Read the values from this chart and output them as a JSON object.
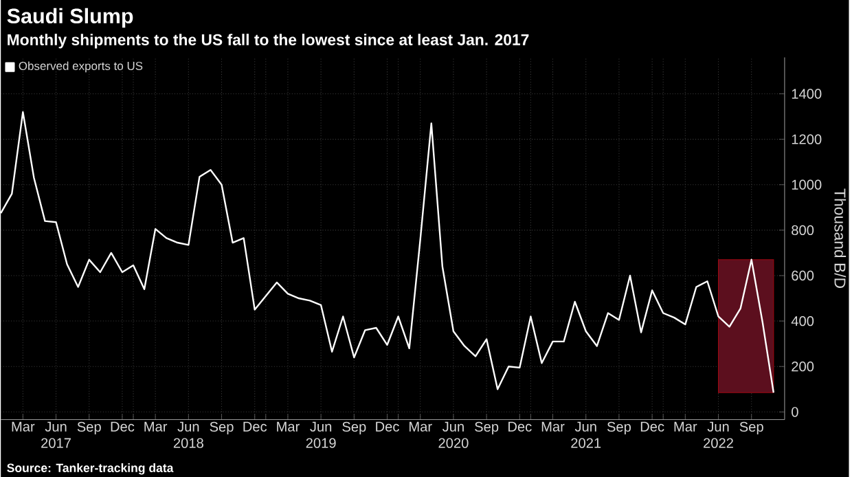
{
  "chart_data": {
    "type": "line",
    "title": "Saudi Slump",
    "subtitle": "Monthly shipments to the US fall to the lowest since at least Jan. 2017",
    "ylabel": "Thousand B/D",
    "x": [
      "2017-01",
      "2017-02",
      "2017-03",
      "2017-04",
      "2017-05",
      "2017-06",
      "2017-07",
      "2017-08",
      "2017-09",
      "2017-10",
      "2017-11",
      "2017-12",
      "2018-01",
      "2018-02",
      "2018-03",
      "2018-04",
      "2018-05",
      "2018-06",
      "2018-07",
      "2018-08",
      "2018-09",
      "2018-10",
      "2018-11",
      "2018-12",
      "2019-01",
      "2019-02",
      "2019-03",
      "2019-04",
      "2019-05",
      "2019-06",
      "2019-07",
      "2019-08",
      "2019-09",
      "2019-10",
      "2019-11",
      "2019-12",
      "2020-01",
      "2020-02",
      "2020-03",
      "2020-04",
      "2020-05",
      "2020-06",
      "2020-07",
      "2020-08",
      "2020-09",
      "2020-10",
      "2020-11",
      "2020-12",
      "2021-01",
      "2021-02",
      "2021-03",
      "2021-04",
      "2021-05",
      "2021-06",
      "2021-07",
      "2021-08",
      "2021-09",
      "2021-10",
      "2021-11",
      "2021-12",
      "2022-01",
      "2022-02",
      "2022-03",
      "2022-04",
      "2022-05",
      "2022-06",
      "2022-07",
      "2022-08",
      "2022-09",
      "2022-10",
      "2022-11"
    ],
    "series": [
      {
        "name": "Observed exports to US",
        "color": "#ffffff",
        "values": [
          875,
          960,
          1320,
          1030,
          840,
          835,
          650,
          550,
          670,
          615,
          700,
          615,
          645,
          540,
          805,
          765,
          745,
          735,
          1035,
          1065,
          1000,
          745,
          765,
          450,
          510,
          570,
          520,
          500,
          490,
          470,
          265,
          420,
          240,
          360,
          370,
          295,
          420,
          280,
          760,
          1270,
          640,
          355,
          290,
          245,
          320,
          100,
          200,
          195,
          420,
          215,
          310,
          310,
          485,
          355,
          290,
          435,
          405,
          600,
          350,
          535,
          435,
          415,
          385,
          550,
          575,
          420,
          375,
          455,
          670,
          395,
          85
        ]
      }
    ],
    "xlim": [
      "2017-01",
      "2022-12"
    ],
    "ylim": [
      -34,
      1560
    ],
    "xticks": [
      {
        "value": "2017-03",
        "label": "Mar"
      },
      {
        "value": "2017-06",
        "label": "Jun 2017"
      },
      {
        "value": "2017-09",
        "label": "Sep"
      },
      {
        "value": "2017-12",
        "label": "Dec"
      },
      {
        "value": "2018-01",
        "label": null
      },
      {
        "value": "2018-03",
        "label": "Mar"
      },
      {
        "value": "2018-06",
        "label": "Jun 2018"
      },
      {
        "value": "2018-09",
        "label": "Sep"
      },
      {
        "value": "2018-12",
        "label": "Dec"
      },
      {
        "value": "2019-01",
        "label": null
      },
      {
        "value": "2019-03",
        "label": "Mar"
      },
      {
        "value": "2019-06",
        "label": "Jun 2019"
      },
      {
        "value": "2019-09",
        "label": "Sep"
      },
      {
        "value": "2019-12",
        "label": "Dec"
      },
      {
        "value": "2020-01",
        "label": null
      },
      {
        "value": "2020-03",
        "label": "Mar"
      },
      {
        "value": "2020-06",
        "label": "Jun 2020"
      },
      {
        "value": "2020-09",
        "label": "Sep"
      },
      {
        "value": "2020-12",
        "label": "Dec"
      },
      {
        "value": "2021-01",
        "label": null
      },
      {
        "value": "2021-03",
        "label": "Mar"
      },
      {
        "value": "2021-06",
        "label": "Jun 2021"
      },
      {
        "value": "2021-09",
        "label": "Sep"
      },
      {
        "value": "2021-12",
        "label": "Dec"
      },
      {
        "value": "2022-01",
        "label": null
      },
      {
        "value": "2022-03",
        "label": "Mar"
      },
      {
        "value": "2022-06",
        "label": "Jun 2022"
      },
      {
        "value": "2022-09",
        "label": "Sep"
      }
    ],
    "yticks": [
      0,
      200,
      400,
      600,
      800,
      1000,
      1200,
      1400
    ],
    "grid": true,
    "legend": "top left",
    "bands": [
      {
        "axis": "x",
        "from": "2022-06",
        "to": "2022-11",
        "color": "#5c0f1e"
      }
    ],
    "annotations": [
      "Source: Tanker-tracking data"
    ]
  }
}
